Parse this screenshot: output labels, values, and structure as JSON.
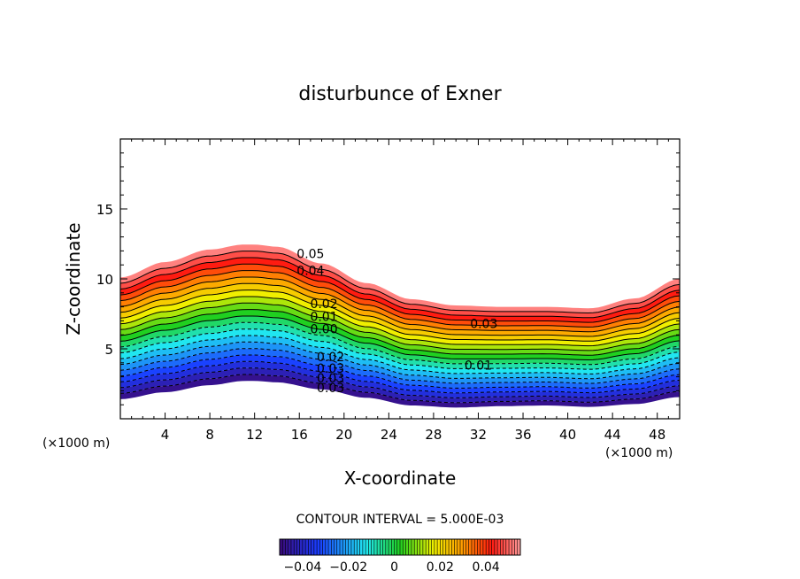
{
  "chart_data": {
    "type": "contour",
    "title": "disturbunce of Exner",
    "xlabel": "X-coordinate",
    "ylabel": "Z-coordinate",
    "x_unit_left": "(×1000 m)",
    "x_unit_right": "(×1000 m)",
    "xlim": [
      0,
      50
    ],
    "ylim": [
      0,
      20
    ],
    "x_ticks": [
      4,
      8,
      12,
      16,
      20,
      24,
      28,
      32,
      36,
      40,
      44,
      48
    ],
    "x_tick_labels": [
      "4",
      "8",
      "12",
      "16",
      "20",
      "24",
      "28",
      "32",
      "36",
      "40",
      "44",
      "48"
    ],
    "y_ticks": [
      5,
      10,
      15
    ],
    "y_tick_labels": [
      "5",
      "10",
      "15"
    ],
    "contour_interval_text": "CONTOUR INTERVAL = 5.000E-03",
    "contour_interval": 0.005,
    "value_range": [
      -0.05,
      0.055
    ],
    "ground_profile": {
      "x": [
        0,
        4,
        8,
        11,
        12,
        14,
        18,
        22,
        26,
        30,
        34,
        38,
        42,
        46,
        50
      ],
      "z": [
        1.4,
        1.9,
        2.4,
        2.7,
        2.7,
        2.6,
        2.1,
        1.5,
        0.95,
        0.8,
        0.9,
        0.95,
        0.85,
        1.05,
        1.55
      ]
    },
    "top_profile": {
      "x": [
        0,
        4,
        8,
        11,
        12,
        14,
        18,
        22,
        26,
        30,
        34,
        38,
        42,
        46,
        50
      ],
      "z": [
        10.1,
        11.2,
        12.1,
        12.45,
        12.45,
        12.3,
        11.1,
        9.7,
        8.55,
        8.1,
        8.0,
        8.0,
        7.9,
        8.6,
        10.0
      ]
    },
    "contour_labels": [
      {
        "text": "0.05",
        "x": 17,
        "z": 11.5
      },
      {
        "text": "0.04",
        "x": 17,
        "z": 10.3
      },
      {
        "text": "0.02",
        "x": 18.2,
        "z": 7.9
      },
      {
        "text": "0.01",
        "x": 18.2,
        "z": 7.0
      },
      {
        "text": "0.00",
        "x": 18.2,
        "z": 6.1
      },
      {
        "text": "0.03",
        "x": 32.5,
        "z": 6.5
      },
      {
        "text": "0.01",
        "x": 32,
        "z": 3.5
      },
      {
        "text": "0.02",
        "x": 18.8,
        "z": 4.1
      },
      {
        "text": "0.03",
        "x": 18.8,
        "z": 3.3
      },
      {
        "text": "0.03",
        "x": 18.8,
        "z": 2.6
      },
      {
        "text": "0.03",
        "x": 18.8,
        "z": 1.9
      }
    ],
    "colorbar": {
      "range": [
        -0.05,
        0.055
      ],
      "ticks": [
        -0.04,
        -0.02,
        0,
        0.02,
        0.04
      ],
      "tick_labels": [
        "−0.04",
        "−0.02",
        "0",
        "0.02",
        "0.04"
      ]
    },
    "colors": {
      "lowest": "#3a0a7a",
      "blue": "#1a3cff",
      "cyan": "#20e8f0",
      "green": "#20d020",
      "yellow": "#f0f000",
      "orange": "#ff9a00",
      "red": "#ff1a10",
      "highest": "#ff9a9a"
    }
  }
}
